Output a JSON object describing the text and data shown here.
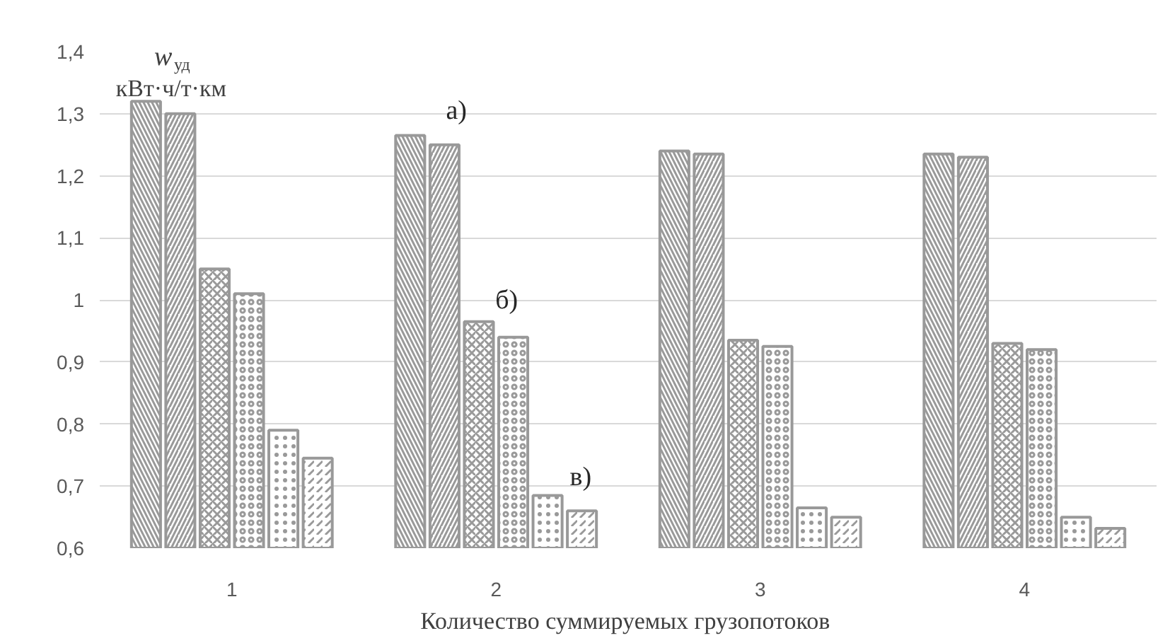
{
  "chart_data": {
    "type": "bar",
    "categories": [
      "1",
      "2",
      "3",
      "4"
    ],
    "series": [
      {
        "color": "#999999",
        "values": [
          1.32,
          1.265,
          1.24,
          1.235
        ]
      },
      {
        "color": "#999999",
        "values": [
          1.3,
          1.25,
          1.235,
          1.23
        ]
      },
      {
        "color": "#999999",
        "values": [
          1.05,
          0.965,
          0.935,
          0.93
        ]
      },
      {
        "color": "#999999",
        "values": [
          1.01,
          0.94,
          0.925,
          0.92
        ]
      },
      {
        "color": "#999999",
        "values": [
          0.79,
          0.685,
          0.665,
          0.65
        ]
      },
      {
        "color": "#999999",
        "values": [
          0.745,
          0.66,
          0.65,
          0.632
        ]
      }
    ],
    "xlabel": "Количество суммируемых  грузопотоков",
    "ylabel": "w$_{уд}$\nкВт·ч/т·км",
    "ylim": [
      0.6,
      1.4
    ],
    "yticks": [
      {
        "value": 0.6,
        "label": "0,6"
      },
      {
        "value": 0.7,
        "label": "0,7"
      },
      {
        "value": 0.8,
        "label": "0,8"
      },
      {
        "value": 0.9,
        "label": "0,9"
      },
      {
        "value": 1,
        "label": "1"
      },
      {
        "value": 1.1,
        "label": "1,1"
      },
      {
        "value": 1.2,
        "label": "1,2"
      },
      {
        "value": 1.3,
        "label": "1,3"
      },
      {
        "value": 1.4,
        "label": "1,4"
      }
    ],
    "annotations": [
      "а)",
      "б)",
      "в)"
    ],
    "grid": "y"
  }
}
